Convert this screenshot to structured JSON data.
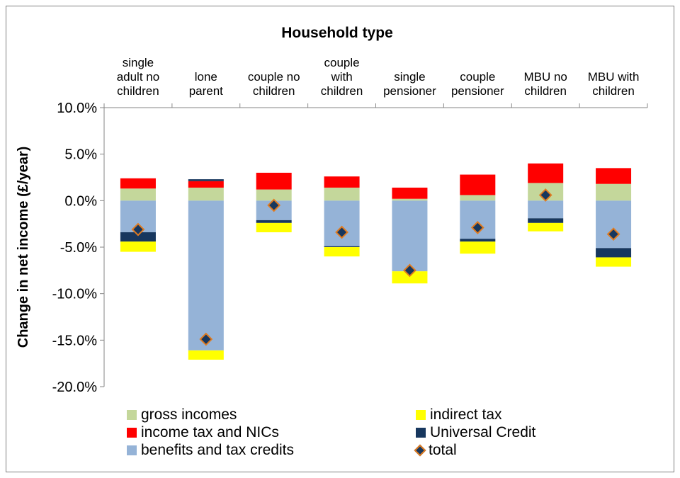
{
  "chart_data": {
    "type": "bar",
    "stacked": true,
    "title": "Household type",
    "ylabel": "Change in net income (£/year)",
    "xlabel": "",
    "ylim": [
      -20,
      10
    ],
    "yticks": [
      10,
      5,
      0,
      -5,
      -10,
      -15,
      -20
    ],
    "ytick_labels": [
      "10.0%",
      "5.0%",
      "0.0%",
      "-5.0%",
      "-10.0%",
      "-15.0%",
      "-20.0%"
    ],
    "x_axis_position": "top",
    "categories": [
      [
        "single",
        "adult no",
        "children"
      ],
      [
        "lone",
        "parent"
      ],
      [
        "couple no",
        "children"
      ],
      [
        "couple",
        "with",
        "children"
      ],
      [
        "single",
        "pensioner"
      ],
      [
        "couple",
        "pensioner"
      ],
      [
        "MBU no",
        "children"
      ],
      [
        "MBU with",
        "children"
      ]
    ],
    "legend_position": "bottom",
    "series": [
      {
        "name": "gross incomes",
        "color": "#c4d79b",
        "values": [
          1.3,
          1.4,
          1.2,
          1.4,
          0.2,
          0.6,
          1.9,
          1.8
        ]
      },
      {
        "name": "income tax and NICs",
        "color": "#ff0000",
        "values": [
          1.1,
          0.7,
          1.8,
          1.2,
          1.2,
          2.2,
          2.1,
          1.7
        ]
      },
      {
        "name": "benefits and tax credits",
        "color": "#95b3d7",
        "values": [
          -3.4,
          -16.1,
          -2.1,
          -4.9,
          -7.6,
          -4.1,
          -1.9,
          -5.1
        ]
      },
      {
        "name": "Universal Credit",
        "color": "#17375e",
        "values": [
          -1.0,
          0.2,
          -0.3,
          -0.1,
          0.0,
          -0.3,
          -0.5,
          -1.0
        ]
      },
      {
        "name": "indirect tax",
        "color": "#ffff00",
        "values": [
          -1.1,
          -1.0,
          -1.0,
          -1.0,
          -1.3,
          -1.3,
          -0.9,
          -1.0
        ]
      }
    ],
    "total": {
      "name": "total",
      "color": "#17375e",
      "edge_color": "#e07b20",
      "values": [
        -3.1,
        -14.9,
        -0.5,
        -3.4,
        -7.5,
        -2.9,
        0.6,
        -3.6
      ]
    },
    "grid": false
  },
  "legend": {
    "items": [
      {
        "label": "gross incomes",
        "color": "#c4d79b"
      },
      {
        "label": "indirect tax",
        "color": "#ffff00"
      },
      {
        "label": "income tax and NICs",
        "color": "#ff0000"
      },
      {
        "label": "Universal Credit",
        "color": "#17375e"
      },
      {
        "label": "benefits and tax credits",
        "color": "#95b3d7"
      },
      {
        "label": "total",
        "color": "#17375e",
        "marker": "diamond"
      }
    ]
  }
}
